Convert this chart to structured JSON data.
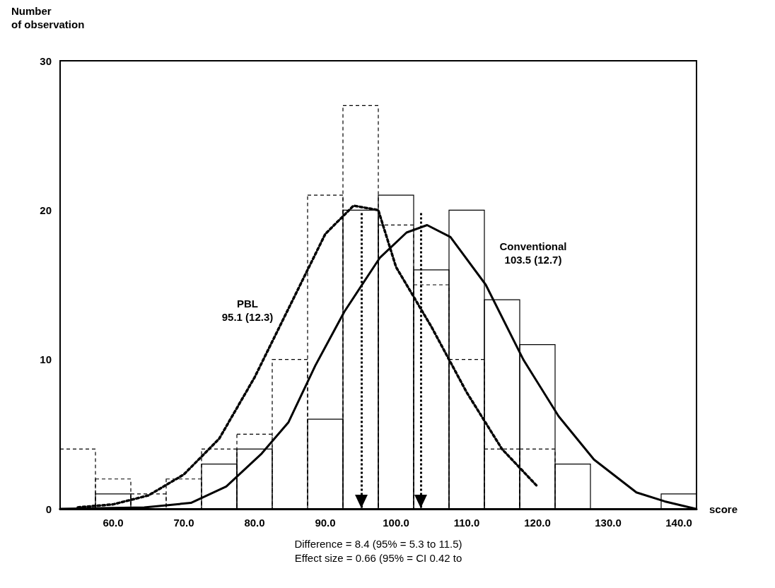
{
  "chart_data": {
    "type": "histogram",
    "xlabel": "score",
    "ylabel": "Number\nof observation",
    "bins": [
      52.5,
      57.5,
      62.5,
      67.5,
      72.5,
      77.5,
      82.5,
      87.5,
      92.5,
      97.5,
      102.5,
      107.5,
      112.5,
      117.5,
      122.5,
      127.5,
      132.5,
      137.5,
      142.5
    ],
    "series": [
      {
        "color": "#000000",
        "line_style": "dashed",
        "values": [
          4,
          2,
          1,
          2,
          4,
          5,
          10,
          21,
          27,
          19,
          15,
          10,
          4,
          4,
          0,
          0,
          0,
          0
        ]
      },
      {
        "color": "#000000",
        "line_style": "solid",
        "values": [
          0,
          1,
          0,
          0,
          3,
          4,
          0,
          6,
          20,
          21,
          16,
          20,
          14,
          11,
          3,
          0,
          0,
          1
        ]
      },
      {
        "type": "line",
        "name": "PBL\n95.1 (12.3)",
        "color": "#000000",
        "line_style": "dotted",
        "x": [
          55,
          60,
          65,
          70,
          75,
          80,
          85,
          90,
          94,
          97.5,
          100,
          105,
          110,
          115,
          120
        ],
        "values": [
          0.1,
          0.3,
          0.9,
          2.3,
          4.7,
          8.8,
          13.6,
          18.4,
          20.3,
          20.0,
          16.2,
          12.2,
          7.8,
          4.0,
          1.5
        ]
      },
      {
        "type": "line",
        "name": "Conventional\n103.5 (12.7)",
        "color": "#000000",
        "line_style": "solid",
        "x": [
          52.5,
          64.4,
          71,
          76,
          81,
          84.8,
          88.6,
          92.7,
          97.7,
          101.5,
          104.4,
          107.7,
          112.7,
          118,
          123,
          128,
          134,
          138,
          142.4
        ],
        "values": [
          0,
          0.1,
          0.4,
          1.5,
          3.7,
          5.8,
          9.6,
          13.2,
          16.8,
          18.5,
          19.0,
          18.2,
          15.0,
          10.0,
          6.2,
          3.3,
          1.1,
          0.5,
          0
        ]
      }
    ],
    "xlim": [
      52.5,
      142.5
    ],
    "xticks": [
      {
        "value": 60,
        "label": "60.0"
      },
      {
        "value": 70,
        "label": "70.0"
      },
      {
        "value": 80,
        "label": "80.0"
      },
      {
        "value": 90,
        "label": "90.0"
      },
      {
        "value": 100,
        "label": "100.0"
      },
      {
        "value": 110,
        "label": "110.0"
      },
      {
        "value": 120,
        "label": "120.0"
      },
      {
        "value": 130,
        "label": "130.0"
      },
      {
        "value": 140,
        "label": "140.0"
      }
    ],
    "ylim": [
      0,
      30
    ],
    "yticks": [
      0,
      10,
      20,
      30
    ],
    "ref_lines": [
      {
        "axis": "x",
        "value": 95.1,
        "line_style": "dotted",
        "color": "#000000"
      },
      {
        "axis": "x",
        "value": 103.5,
        "line_style": "dotted",
        "color": "#000000"
      }
    ],
    "annotations": [
      "Difference = 8.4 (95% = 5.3 to 11.5)",
      "Effect size = 0.66 (95% = CI 0.42 to"
    ],
    "grid": false,
    "legend": false
  }
}
